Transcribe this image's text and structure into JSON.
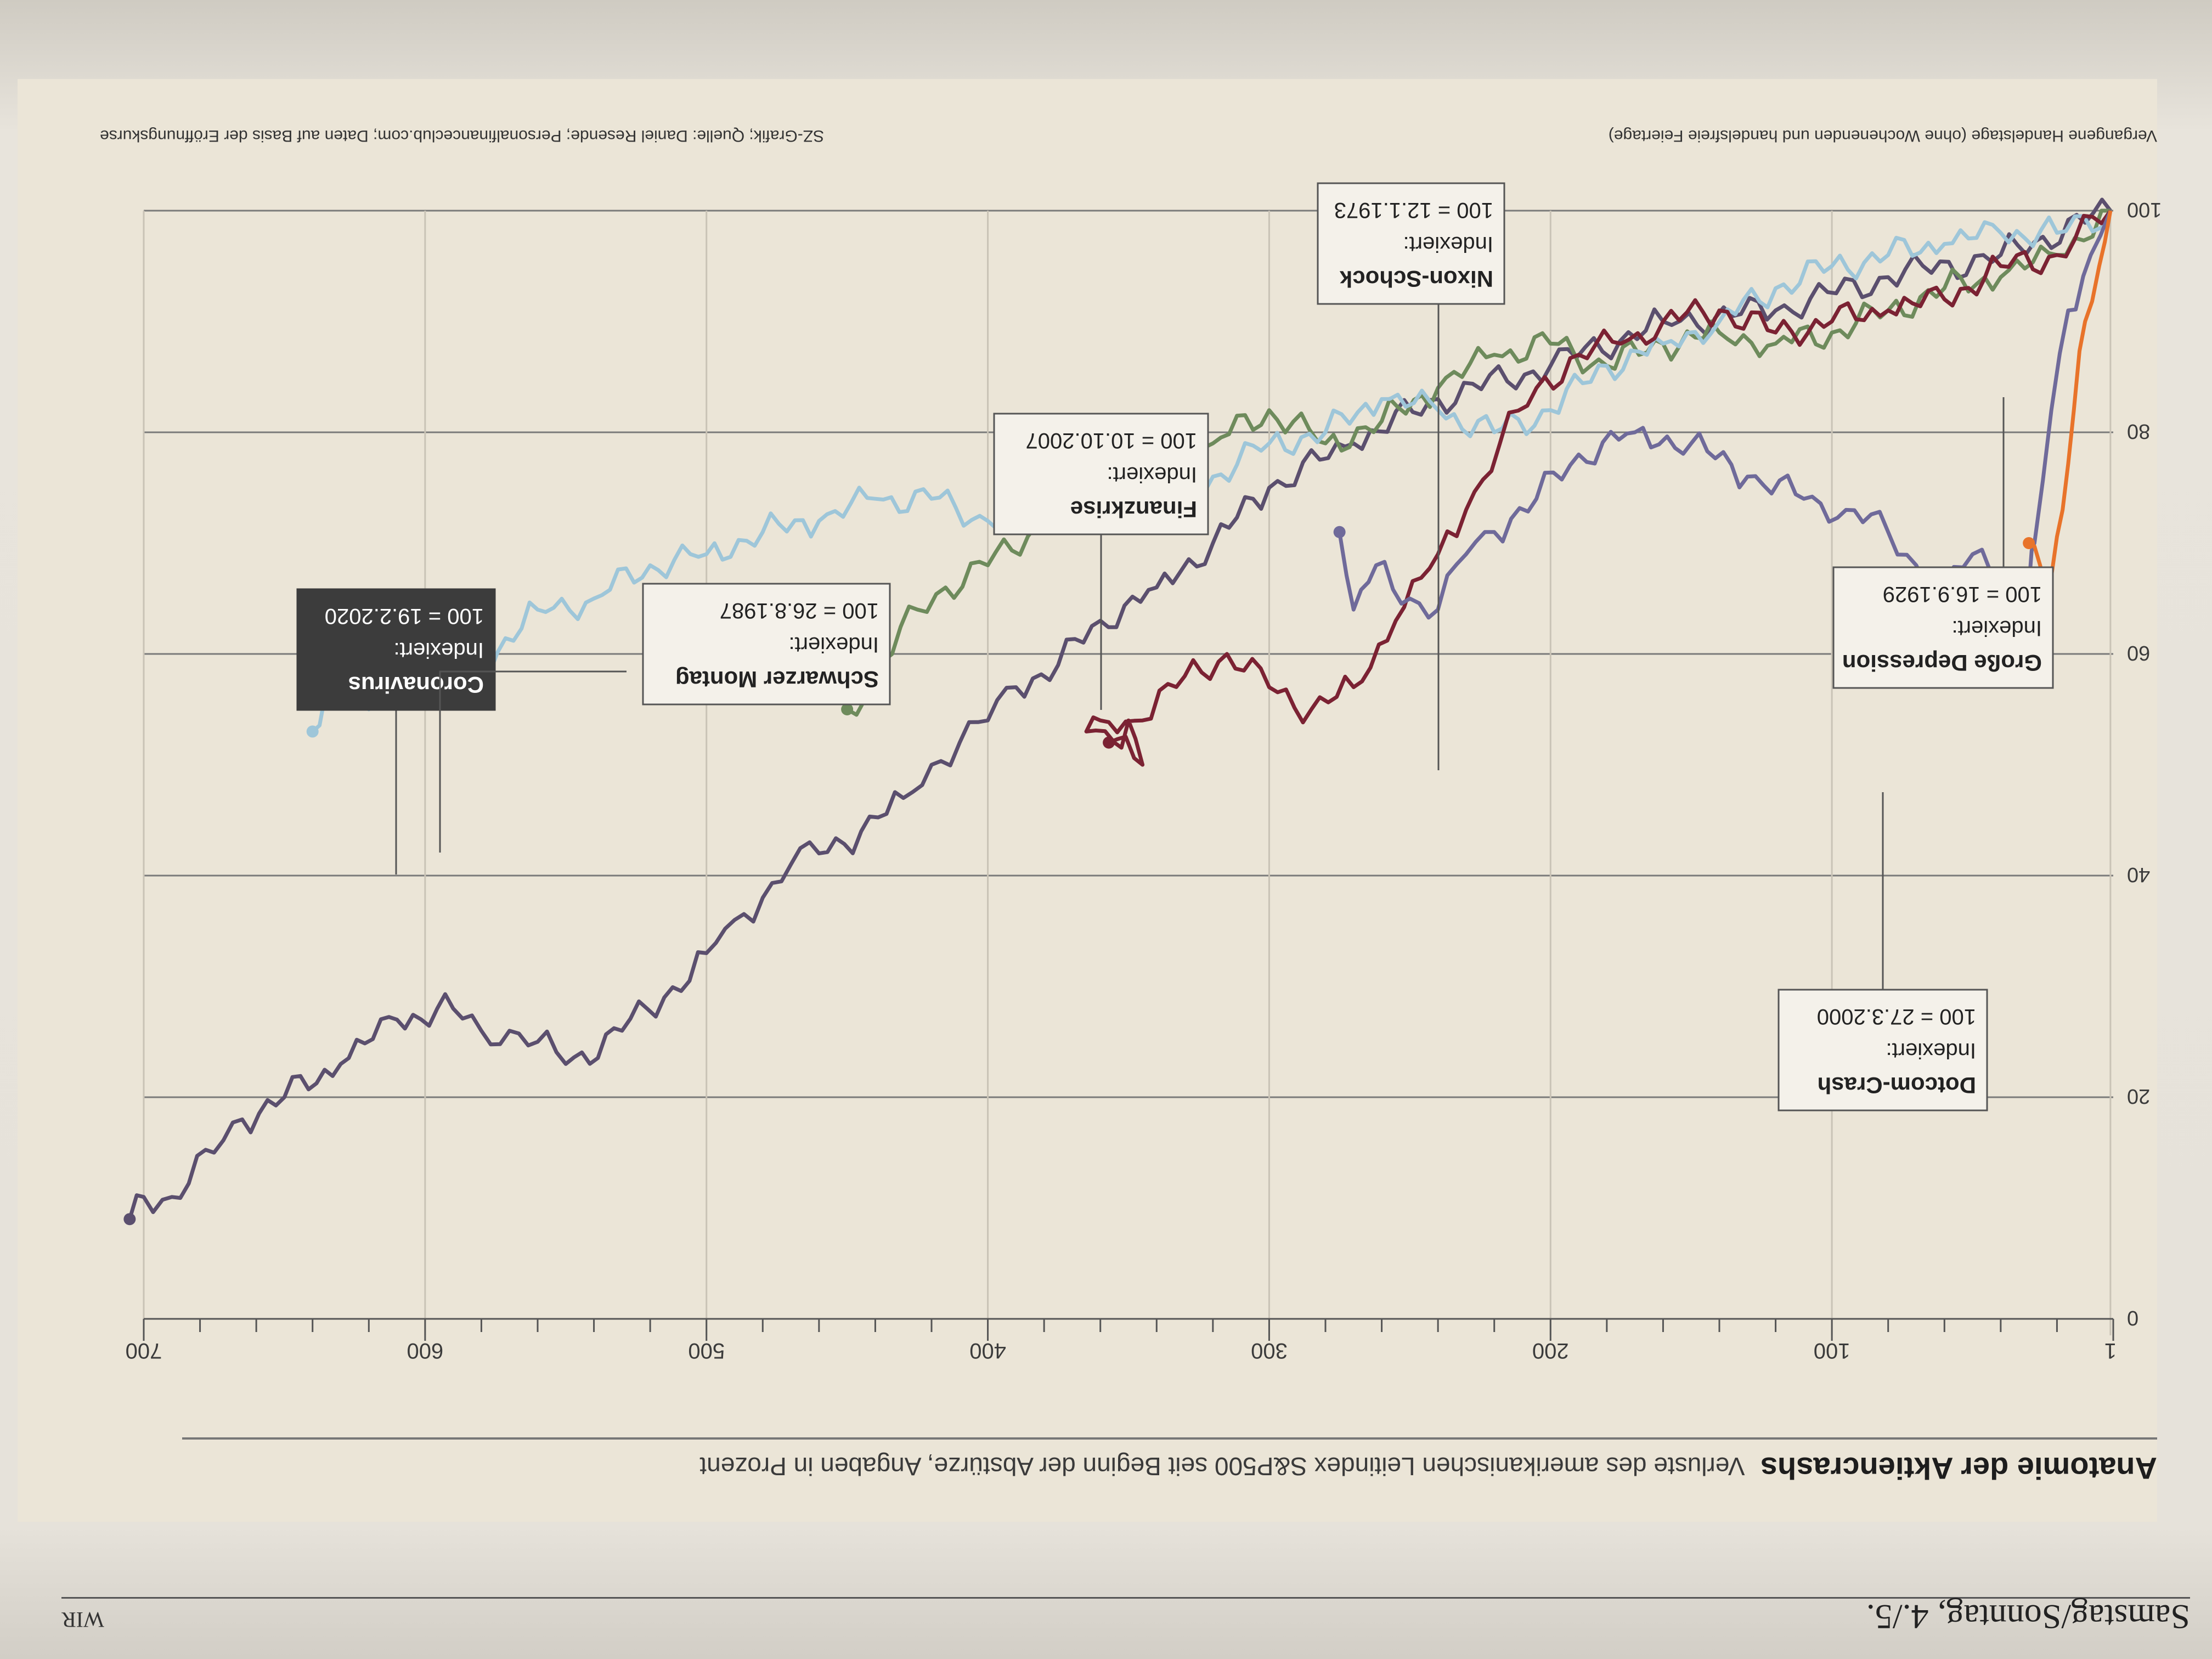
{
  "masthead": {
    "date": "Samstag/Sonntag, 4./5.",
    "page": "WIR"
  },
  "headline": {
    "title": "Anatomie der Aktiencrashs",
    "subtitle": "Verluste des amerikanischen Leitindex S&P500 seit Beginn der Abstürze, Angaben in Prozent"
  },
  "footnote": {
    "x_axis_note": "Vergangene Handelstage (ohne Wochenenden und handelsfreie Feiertage)",
    "source": "SZ-Grafik; Quelle: Daniel Resende; Personalfinanceclub.com; Daten auf Basis der Eröffnungskurse"
  },
  "chart_data": {
    "type": "line",
    "title": "Anatomie der Aktiencrashs",
    "subtitle": "Verluste des amerikanischen Leitindex S&P500 seit Beginn der Abstürze, Angaben in Prozent",
    "xlabel": "Vergangene Handelstage (ohne Wochenenden und handelsfreie Feiertage)",
    "ylabel": "",
    "xlim": [
      0,
      700
    ],
    "ylim": [
      0,
      100
    ],
    "x_ticks": [
      "1",
      "100",
      "200",
      "300",
      "400",
      "500",
      "600",
      "700"
    ],
    "x_tick_values": [
      1,
      100,
      200,
      300,
      400,
      500,
      600,
      700
    ],
    "y_ticks": [
      "0",
      "20",
      "40",
      "60",
      "80",
      "100"
    ],
    "y_tick_values": [
      0,
      20,
      40,
      60,
      80,
      100
    ],
    "grid": true,
    "orientation_note": "printed page photographed upside down",
    "series": [
      {
        "name": "Coronavirus",
        "color": "#e8732a",
        "points": [
          [
            1,
            100
          ],
          [
            5,
            95
          ],
          [
            10,
            90
          ],
          [
            14,
            82
          ],
          [
            18,
            73
          ],
          [
            22,
            67
          ],
          [
            26,
            68
          ],
          [
            30,
            70
          ]
        ]
      },
      {
        "name": "Schwarzer Montag",
        "color": "#6f6a9a",
        "points": [
          [
            1,
            100
          ],
          [
            8,
            96
          ],
          [
            16,
            91
          ],
          [
            22,
            82
          ],
          [
            28,
            70
          ],
          [
            30,
            66
          ],
          [
            36,
            62
          ],
          [
            40,
            67
          ],
          [
            50,
            69
          ],
          [
            60,
            66
          ],
          [
            70,
            68
          ],
          [
            80,
            71
          ],
          [
            95,
            73
          ],
          [
            110,
            74
          ],
          [
            130,
            76
          ],
          [
            150,
            79
          ],
          [
            170,
            80
          ],
          [
            190,
            78
          ],
          [
            205,
            74
          ],
          [
            220,
            71
          ],
          [
            230,
            69
          ],
          [
            240,
            64
          ],
          [
            250,
            65
          ],
          [
            262,
            68
          ],
          [
            270,
            64
          ],
          [
            275,
            71
          ]
        ]
      },
      {
        "name": "Finanzkrise",
        "color": "#7b2233",
        "points": [
          [
            1,
            100
          ],
          [
            20,
            96
          ],
          [
            40,
            95
          ],
          [
            60,
            92
          ],
          [
            80,
            91
          ],
          [
            100,
            90
          ],
          [
            120,
            89
          ],
          [
            140,
            91
          ],
          [
            160,
            90
          ],
          [
            175,
            88
          ],
          [
            190,
            87
          ],
          [
            205,
            84
          ],
          [
            218,
            79
          ],
          [
            230,
            73
          ],
          [
            240,
            69
          ],
          [
            255,
            63
          ],
          [
            270,
            57
          ],
          [
            285,
            55
          ],
          [
            300,
            57
          ],
          [
            315,
            60
          ],
          [
            330,
            58
          ],
          [
            345,
            54
          ],
          [
            360,
            54
          ],
          [
            365,
            53
          ],
          [
            355,
            52
          ],
          [
            350,
            54
          ],
          [
            345,
            50
          ],
          [
            357,
            52
          ]
        ]
      },
      {
        "name": "Nixon-Schock",
        "color": "#6e8b5c",
        "points": [
          [
            1,
            100
          ],
          [
            20,
            96
          ],
          [
            40,
            94
          ],
          [
            60,
            93
          ],
          [
            80,
            91
          ],
          [
            100,
            89
          ],
          [
            120,
            88
          ],
          [
            140,
            89
          ],
          [
            160,
            88
          ],
          [
            180,
            86
          ],
          [
            200,
            88
          ],
          [
            220,
            87
          ],
          [
            240,
            84
          ],
          [
            260,
            81
          ],
          [
            280,
            79
          ],
          [
            300,
            82
          ],
          [
            320,
            79
          ],
          [
            340,
            77
          ],
          [
            360,
            76
          ],
          [
            380,
            72
          ],
          [
            400,
            68
          ],
          [
            415,
            66
          ],
          [
            425,
            64
          ],
          [
            440,
            58
          ],
          [
            450,
            55
          ]
        ]
      },
      {
        "name": "Dotcom-Crash",
        "color": "#9ec6d9",
        "points": [
          [
            1,
            100
          ],
          [
            20,
            98
          ],
          [
            40,
            98
          ],
          [
            60,
            97
          ],
          [
            80,
            96
          ],
          [
            100,
            95
          ],
          [
            120,
            93
          ],
          [
            140,
            90
          ],
          [
            160,
            88
          ],
          [
            180,
            86
          ],
          [
            200,
            82
          ],
          [
            220,
            80
          ],
          [
            240,
            82
          ],
          [
            260,
            83
          ],
          [
            280,
            80
          ],
          [
            300,
            79
          ],
          [
            320,
            76
          ],
          [
            340,
            74
          ],
          [
            360,
            75
          ],
          [
            380,
            73
          ],
          [
            400,
            72
          ],
          [
            420,
            74
          ],
          [
            440,
            74
          ],
          [
            460,
            72
          ],
          [
            480,
            71
          ],
          [
            500,
            69
          ],
          [
            520,
            68
          ],
          [
            540,
            65
          ],
          [
            560,
            64
          ],
          [
            580,
            59
          ],
          [
            590,
            61
          ],
          [
            600,
            58
          ],
          [
            610,
            57
          ],
          [
            620,
            55
          ],
          [
            635,
            57
          ],
          [
            640,
            53
          ]
        ]
      },
      {
        "name": "Große Depression",
        "color": "#5b4f6e",
        "points": [
          [
            1,
            100
          ],
          [
            40,
            96
          ],
          [
            80,
            94
          ],
          [
            120,
            91
          ],
          [
            160,
            90
          ],
          [
            200,
            86
          ],
          [
            240,
            83
          ],
          [
            270,
            79
          ],
          [
            300,
            75
          ],
          [
            320,
            70
          ],
          [
            340,
            66
          ],
          [
            360,
            63
          ],
          [
            375,
            59
          ],
          [
            390,
            57
          ],
          [
            400,
            54
          ],
          [
            410,
            52
          ],
          [
            420,
            50
          ],
          [
            430,
            47
          ],
          [
            445,
            44
          ],
          [
            460,
            42
          ],
          [
            470,
            41
          ],
          [
            480,
            38
          ],
          [
            490,
            36
          ],
          [
            500,
            33
          ],
          [
            515,
            29
          ],
          [
            530,
            26
          ],
          [
            550,
            23
          ],
          [
            560,
            25
          ],
          [
            570,
            26
          ],
          [
            580,
            26
          ],
          [
            590,
            28
          ],
          [
            610,
            27
          ],
          [
            630,
            23
          ],
          [
            650,
            20
          ],
          [
            665,
            18
          ],
          [
            675,
            15
          ],
          [
            690,
            11
          ],
          [
            700,
            11
          ],
          [
            705,
            9
          ]
        ]
      }
    ],
    "callouts": [
      {
        "series": "Coronavirus",
        "lines": [
          "Coronavirus",
          "Indexiert:",
          "100 = 19.2.2020"
        ]
      },
      {
        "series": "Schwarzer Montag",
        "lines": [
          "Schwarzer Montag",
          "Indexiert:",
          "100 = 26.8.1987"
        ]
      },
      {
        "series": "Finanzkrise",
        "lines": [
          "Finanzkrise",
          "Indexiert:",
          "100 = 10.10.2007"
        ]
      },
      {
        "series": "Nixon-Schock",
        "lines": [
          "Nixon-Schock",
          "Indexiert:",
          "100 = 12.1.1973"
        ]
      },
      {
        "series": "Dotcom-Crash",
        "lines": [
          "Dotcom-Crash",
          "Indexiert:",
          "100 = 27.3.2000"
        ]
      },
      {
        "series": "Große Depression",
        "lines": [
          "Große Depression",
          "Indexiert:",
          "100 = 16.9.1929"
        ]
      }
    ]
  }
}
